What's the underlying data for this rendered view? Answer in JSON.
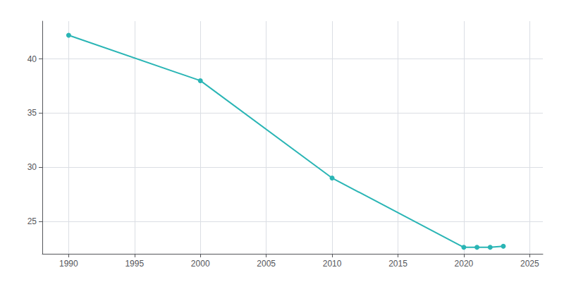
{
  "chart_data": {
    "type": "line",
    "x": [
      1990,
      2000,
      2010,
      2020,
      2021,
      2022,
      2023
    ],
    "values": [
      42.2,
      38.0,
      29.0,
      22.6,
      22.6,
      22.6,
      22.7
    ],
    "color": "#2ab5b5",
    "marker": "circle",
    "xlim": [
      1988,
      2026
    ],
    "ylim": [
      22,
      43.5
    ],
    "xticks": [
      1990,
      1995,
      2000,
      2005,
      2010,
      2015,
      2020,
      2025
    ],
    "yticks": [
      25,
      30,
      35,
      40
    ],
    "grid": true
  }
}
